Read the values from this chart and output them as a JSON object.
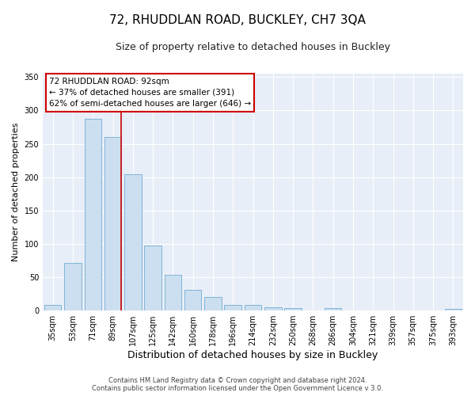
{
  "title": "72, RHUDDLAN ROAD, BUCKLEY, CH7 3QA",
  "subtitle": "Size of property relative to detached houses in Buckley",
  "xlabel": "Distribution of detached houses by size in Buckley",
  "ylabel": "Number of detached properties",
  "bar_labels": [
    "35sqm",
    "53sqm",
    "71sqm",
    "89sqm",
    "107sqm",
    "125sqm",
    "142sqm",
    "160sqm",
    "178sqm",
    "196sqm",
    "214sqm",
    "232sqm",
    "250sqm",
    "268sqm",
    "286sqm",
    "304sqm",
    "321sqm",
    "339sqm",
    "357sqm",
    "375sqm",
    "393sqm"
  ],
  "bar_values": [
    9,
    72,
    287,
    260,
    204,
    97,
    54,
    31,
    20,
    9,
    9,
    5,
    4,
    0,
    4,
    0,
    0,
    0,
    0,
    0,
    3
  ],
  "bar_color": "#ccdff0",
  "bar_edge_color": "#7fb4d8",
  "property_line_color": "#cc0000",
  "property_line_index": 3,
  "ylim": [
    0,
    355
  ],
  "yticks": [
    0,
    50,
    100,
    150,
    200,
    250,
    300,
    350
  ],
  "annotation_title": "72 RHUDDLAN ROAD: 92sqm",
  "annotation_line1": "← 37% of detached houses are smaller (391)",
  "annotation_line2": "62% of semi-detached houses are larger (646) →",
  "annotation_box_facecolor": "#ffffff",
  "annotation_box_edgecolor": "#cc0000",
  "footer_line1": "Contains HM Land Registry data © Crown copyright and database right 2024.",
  "footer_line2": "Contains public sector information licensed under the Open Government Licence v 3.0.",
  "fig_facecolor": "#ffffff",
  "plot_facecolor": "#e8eef7",
  "grid_color": "#ffffff",
  "title_fontsize": 11,
  "subtitle_fontsize": 9,
  "xlabel_fontsize": 9,
  "ylabel_fontsize": 8,
  "tick_fontsize": 7,
  "footer_fontsize": 6
}
